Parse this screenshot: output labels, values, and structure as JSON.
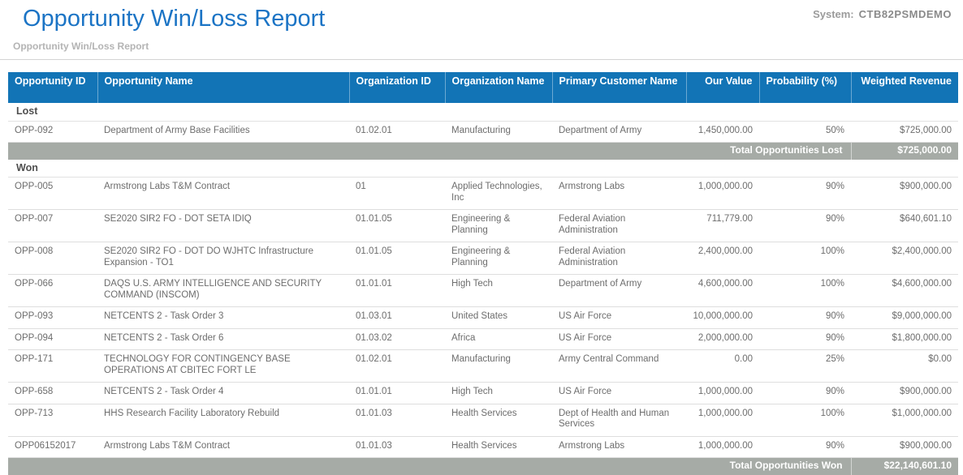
{
  "header": {
    "title": "Opportunity Win/Loss Report",
    "subtitle": "Opportunity Win/Loss Report",
    "system_label": "System:",
    "system_value": "CTB82PSMDEMO"
  },
  "colors": {
    "title_blue": "#1b74c5",
    "table_header_blue": "#1274b6",
    "total_row_gray": "#a6aba6",
    "body_text_gray": "#6d6d6d"
  },
  "table": {
    "columns": [
      "Opportunity ID",
      "Opportunity Name",
      "Organization ID",
      "Organization Name",
      "Primary Customer Name",
      "Our Value",
      "Probability (%)",
      "Weighted Revenue"
    ],
    "sections": [
      {
        "name": "Lost",
        "rows": [
          {
            "id": "OPP-092",
            "name": "Department of Army Base Facilities",
            "org_id": "01.02.01",
            "org_name": "Manufacturing",
            "customer": "Department of Army",
            "our_value": "1,450,000.00",
            "probability": "50%",
            "weighted_revenue": "$725,000.00"
          }
        ],
        "total_label": "Total Opportunities Lost",
        "total_value": "$725,000.00"
      },
      {
        "name": "Won",
        "rows": [
          {
            "id": "OPP-005",
            "name": "Armstrong Labs T&M Contract",
            "org_id": "01",
            "org_name": "Applied Technologies, Inc",
            "customer": "Armstrong Labs",
            "our_value": "1,000,000.00",
            "probability": "90%",
            "weighted_revenue": "$900,000.00"
          },
          {
            "id": "OPP-007",
            "name": "SE2020 SIR2 FO - DOT SETA IDIQ",
            "org_id": "01.01.05",
            "org_name": "Engineering & Planning",
            "customer": "Federal Aviation Administration",
            "our_value": "711,779.00",
            "probability": "90%",
            "weighted_revenue": "$640,601.10"
          },
          {
            "id": "OPP-008",
            "name": "SE2020 SIR2 FO - DOT DO WJHTC Infrastructure Expansion - TO1",
            "org_id": "01.01.05",
            "org_name": "Engineering & Planning",
            "customer": "Federal Aviation Administration",
            "our_value": "2,400,000.00",
            "probability": "100%",
            "weighted_revenue": "$2,400,000.00"
          },
          {
            "id": "OPP-066",
            "name": "DAQS U.S. ARMY INTELLIGENCE AND SECURITY COMMAND (INSCOM)",
            "org_id": "01.01.01",
            "org_name": "High Tech",
            "customer": "Department of Army",
            "our_value": "4,600,000.00",
            "probability": "100%",
            "weighted_revenue": "$4,600,000.00"
          },
          {
            "id": "OPP-093",
            "name": "NETCENTS 2 - Task Order 3",
            "org_id": "01.03.01",
            "org_name": "United States",
            "customer": "US Air Force",
            "our_value": "10,000,000.00",
            "probability": "90%",
            "weighted_revenue": "$9,000,000.00"
          },
          {
            "id": "OPP-094",
            "name": "NETCENTS 2 - Task Order 6",
            "org_id": "01.03.02",
            "org_name": "Africa",
            "customer": "US Air Force",
            "our_value": "2,000,000.00",
            "probability": "90%",
            "weighted_revenue": "$1,800,000.00"
          },
          {
            "id": "OPP-171",
            "name": "TECHNOLOGY FOR CONTINGENCY BASE OPERATIONS AT CBITEC FORT LE",
            "org_id": "01.02.01",
            "org_name": "Manufacturing",
            "customer": "Army Central Command",
            "our_value": "0.00",
            "probability": "25%",
            "weighted_revenue": "$0.00"
          },
          {
            "id": "OPP-658",
            "name": "NETCENTS 2 - Task Order 4",
            "org_id": "01.01.01",
            "org_name": "High Tech",
            "customer": "US Air Force",
            "our_value": "1,000,000.00",
            "probability": "90%",
            "weighted_revenue": "$900,000.00"
          },
          {
            "id": "OPP-713",
            "name": "HHS Research Facility Laboratory Rebuild",
            "org_id": "01.01.03",
            "org_name": "Health Services",
            "customer": "Dept of Health and Human Services",
            "our_value": "1,000,000.00",
            "probability": "100%",
            "weighted_revenue": "$1,000,000.00"
          },
          {
            "id": "OPP06152017",
            "name": "Armstrong Labs T&M Contract",
            "org_id": "01.01.03",
            "org_name": "Health Services",
            "customer": "Armstrong Labs",
            "our_value": "1,000,000.00",
            "probability": "90%",
            "weighted_revenue": "$900,000.00"
          }
        ],
        "total_label": "Total Opportunities Won",
        "total_value": "$22,140,601.10"
      }
    ]
  }
}
